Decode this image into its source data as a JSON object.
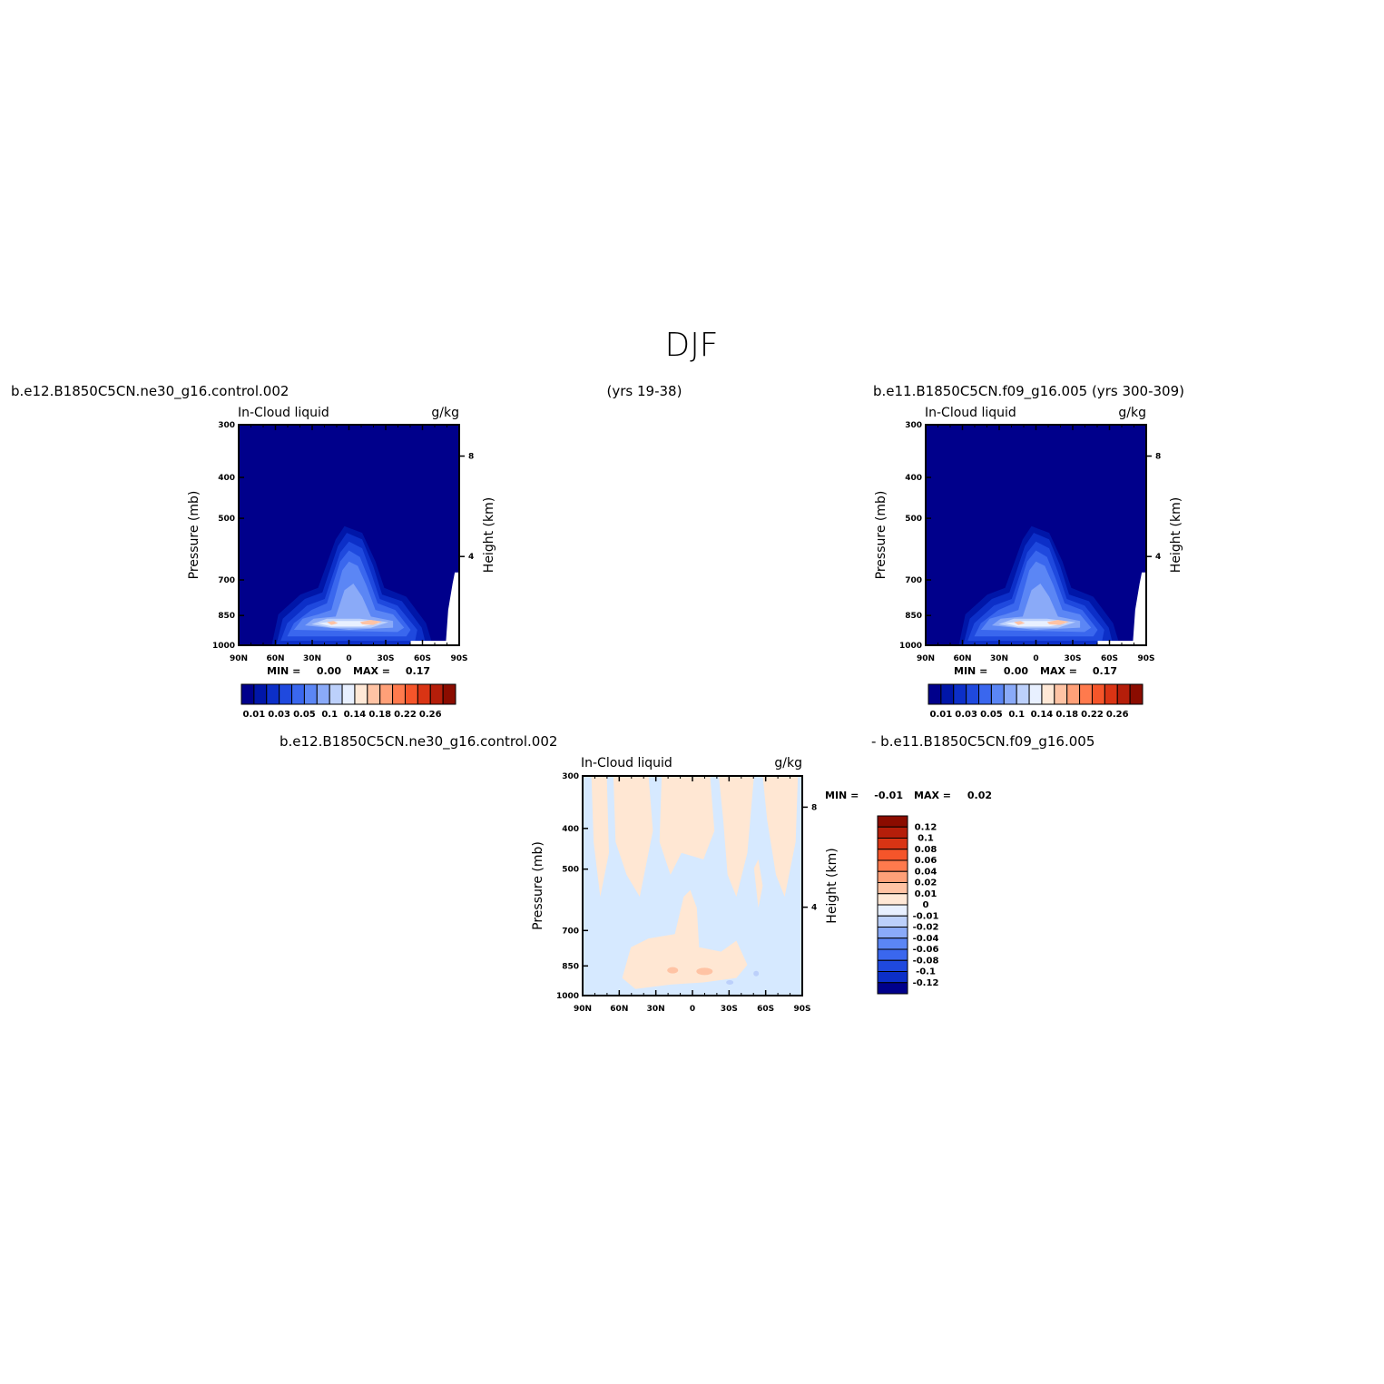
{
  "page": {
    "title": "DJF",
    "panels": [
      {
        "id": "p1",
        "left_string": "b.e12.B1850C5CN.ne30_g16.control.002",
        "center_string": "(yrs 19-38)",
        "variable": "In-Cloud liquid",
        "units": "g/kg",
        "min_label": "MIN =",
        "min_value": "0.00",
        "max_label": "MAX =",
        "max_value": "0.17"
      },
      {
        "id": "p2",
        "left_string": "b.e11.B1850C5CN.f09_g16.005 (yrs 300-309)",
        "variable": "In-Cloud liquid",
        "units": "g/kg",
        "min_label": "MIN =",
        "min_value": "0.00",
        "max_label": "MAX =",
        "max_value": "0.17"
      },
      {
        "id": "p3",
        "left_string": "b.e12.B1850C5CN.ne30_g16.control.002",
        "right_string": "- b.e11.B1850C5CN.f09_g16.005",
        "variable": "In-Cloud liquid",
        "units": "g/kg",
        "min_label": "MIN =",
        "min_value": "-0.01",
        "max_label": "MAX =",
        "max_value": "0.02"
      }
    ],
    "colors": {
      "background_field": "#00008b",
      "diff_background": "#d6e9ff",
      "diff_positive": "#ffe7d3"
    }
  },
  "chart_data": [
    {
      "type": "heatmap",
      "title": "In-Cloud liquid",
      "units": "g/kg",
      "x_tick_labels": [
        "90N",
        "60N",
        "30N",
        "0",
        "30S",
        "60S",
        "90S"
      ],
      "y_tick_labels": [
        "300",
        "400",
        "500",
        "700",
        "850",
        "1000"
      ],
      "y_ticks_values": [
        300,
        400,
        500,
        700,
        850,
        1000
      ],
      "right_tick_labels": [
        "8",
        "4"
      ],
      "ylabel": "Pressure (mb)",
      "ylabel_right": "Height (km)",
      "ylim": [
        1000,
        300
      ],
      "y_scale": "log",
      "colorbar_labels": [
        "0.01",
        "0.03",
        "0.05",
        "0.1",
        "0.14",
        "0.18",
        "0.22",
        "0.26"
      ],
      "colorbar_colors": [
        "#00008b",
        "#0016a8",
        "#0c2fc8",
        "#1f49de",
        "#3a67ee",
        "#5b86f5",
        "#8aaaf8",
        "#bcd0fb",
        "#e8f0ff",
        "#ffe8d6",
        "#ffc3a4",
        "#ffa078",
        "#ff7a4d",
        "#f5552a",
        "#d93414",
        "#b51e0a",
        "#8b0c00"
      ],
      "min": 0.0,
      "max": 0.17
    },
    {
      "type": "heatmap",
      "title": "In-Cloud liquid",
      "units": "g/kg",
      "x_tick_labels": [
        "90N",
        "60N",
        "30N",
        "0",
        "30S",
        "60S",
        "90S"
      ],
      "y_tick_labels": [
        "300",
        "400",
        "500",
        "700",
        "850",
        "1000"
      ],
      "y_ticks_values": [
        300,
        400,
        500,
        700,
        850,
        1000
      ],
      "right_tick_labels": [
        "8",
        "4"
      ],
      "ylabel": "Pressure (mb)",
      "ylabel_right": "Height (km)",
      "ylim": [
        1000,
        300
      ],
      "y_scale": "log",
      "colorbar_labels": [
        "0.01",
        "0.03",
        "0.05",
        "0.1",
        "0.14",
        "0.18",
        "0.22",
        "0.26"
      ],
      "colorbar_colors": [
        "#00008b",
        "#0016a8",
        "#0c2fc8",
        "#1f49de",
        "#3a67ee",
        "#5b86f5",
        "#8aaaf8",
        "#bcd0fb",
        "#e8f0ff",
        "#ffe8d6",
        "#ffc3a4",
        "#ffa078",
        "#ff7a4d",
        "#f5552a",
        "#d93414",
        "#b51e0a",
        "#8b0c00"
      ],
      "min": 0.0,
      "max": 0.17
    },
    {
      "type": "heatmap",
      "title": "In-Cloud liquid",
      "units": "g/kg",
      "x_tick_labels": [
        "90N",
        "60N",
        "30N",
        "0",
        "30S",
        "60S",
        "90S"
      ],
      "y_tick_labels": [
        "300",
        "400",
        "500",
        "700",
        "850",
        "1000"
      ],
      "y_ticks_values": [
        300,
        400,
        500,
        700,
        850,
        1000
      ],
      "right_tick_labels": [
        "8",
        "4"
      ],
      "ylabel": "Pressure (mb)",
      "ylabel_right": "Height (km)",
      "ylim": [
        1000,
        300
      ],
      "y_scale": "log",
      "colorbar_labels": [
        "0.12",
        "0.1",
        "0.08",
        "0.06",
        "0.04",
        "0.02",
        "0.01",
        "0",
        "-0.01",
        "-0.02",
        "-0.04",
        "-0.06",
        "-0.08",
        "-0.1",
        "-0.12"
      ],
      "colorbar_colors": [
        "#8b0c00",
        "#b51e0a",
        "#d93414",
        "#f5552a",
        "#ff7a4d",
        "#ffa078",
        "#ffc3a4",
        "#ffe8d6",
        "#e8f0ff",
        "#bcd0fb",
        "#8aaaf8",
        "#5b86f5",
        "#3a67ee",
        "#1f49de",
        "#0c2fc8",
        "#00008b"
      ],
      "min": -0.01,
      "max": 0.02
    }
  ]
}
